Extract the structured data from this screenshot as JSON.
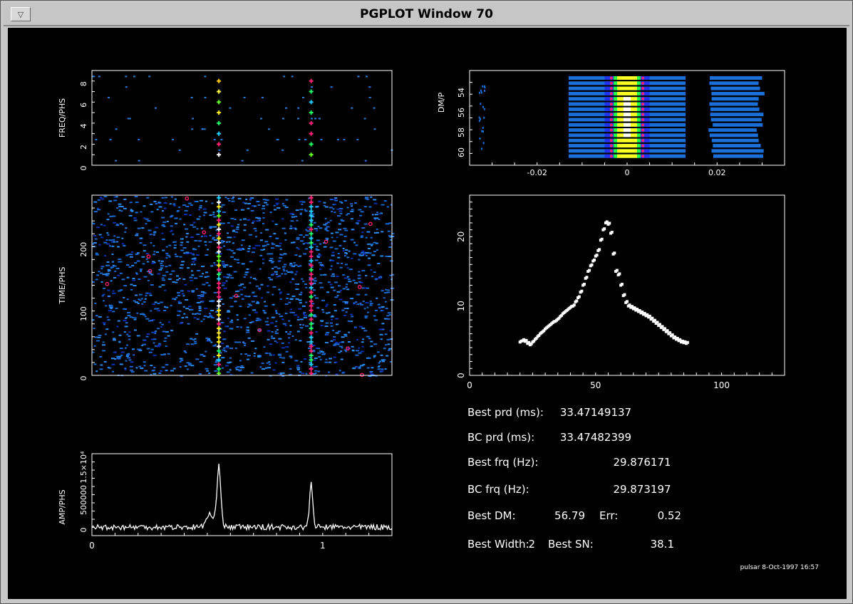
{
  "window": {
    "title": "PGPLOT Window 70",
    "menu_icon": "down-triangle-icon"
  },
  "plots": {
    "freq_phs": {
      "ylabel": "FREQ/PHS",
      "yticks": [
        "0",
        "2",
        "4",
        "6",
        "8"
      ]
    },
    "time_phs": {
      "ylabel": "TIME/PHS",
      "yticks": [
        "0",
        "100",
        "200"
      ]
    },
    "amp_phs": {
      "ylabel": "AMP/PHS",
      "yticks": [
        "0",
        "500000",
        "1.5×10⁴"
      ],
      "xticks": [
        "0",
        "1"
      ]
    },
    "dm_p": {
      "ylabel": "DM/P",
      "yticks": [
        "60",
        "58",
        "56",
        "54"
      ],
      "xticks": [
        "-0.02",
        "0",
        "0.02"
      ]
    },
    "snr_scatter": {
      "yticks": [
        "0",
        "10",
        "20"
      ],
      "xticks": [
        "0",
        "50",
        "100"
      ]
    }
  },
  "results": [
    {
      "label": "Best prd (ms):",
      "value": "33.47149137"
    },
    {
      "label": "BC   prd (ms):",
      "value": "33.47482399"
    },
    {
      "label": "Best frq (Hz):",
      "value": "29.876171"
    },
    {
      "label": "BC   frq (Hz):",
      "value": "29.873197"
    },
    {
      "label": "Best DM:",
      "value": "56.79",
      "label2": "Err:",
      "value2": "0.52"
    },
    {
      "label": "Best Width:",
      "value": "2",
      "label2": "Best SN:",
      "value2": "38.1"
    }
  ],
  "footer": "pulsar  8-Oct-1997 16:57",
  "chart_data": [
    {
      "type": "scatter",
      "ylabel": "FREQ/PHS",
      "xlim": [
        0,
        1.3
      ],
      "ylim": [
        0,
        9
      ],
      "peak_phases": [
        0.55,
        0.95
      ]
    },
    {
      "type": "heatmap",
      "ylabel": "TIME/PHS",
      "xlim": [
        0,
        1.3
      ],
      "ylim": [
        0,
        280
      ],
      "peak_phases": [
        0.55,
        0.95
      ]
    },
    {
      "type": "line",
      "ylabel": "AMP/PHS",
      "xlim": [
        0,
        1.3
      ],
      "peak_phases": [
        0.55,
        0.95
      ]
    },
    {
      "type": "heatmap",
      "ylabel": "DM/P",
      "xlim": [
        -0.035,
        0.035
      ],
      "ylim": [
        61,
        53
      ]
    },
    {
      "type": "scatter",
      "xlim": [
        0,
        125
      ],
      "ylim": [
        0,
        26
      ],
      "x": [
        20,
        21,
        22,
        23,
        24,
        25,
        26,
        27,
        28,
        29,
        30,
        31,
        32,
        33,
        34,
        35,
        36,
        37,
        38,
        39,
        40,
        41,
        42,
        43,
        44,
        45,
        46,
        47,
        48,
        49,
        50,
        51,
        52,
        53,
        54,
        55,
        56,
        57,
        58,
        59,
        60,
        61,
        62,
        63,
        64,
        65,
        66,
        67,
        68,
        69,
        70,
        71,
        72,
        73,
        74,
        75,
        76,
        77,
        78,
        79,
        80,
        81,
        82,
        83,
        84,
        85,
        86
      ],
      "y": [
        4.8,
        5.0,
        4.9,
        4.6,
        4.4,
        4.8,
        5.2,
        5.6,
        6.0,
        6.3,
        6.7,
        7.0,
        7.3,
        7.6,
        7.8,
        8.1,
        8.5,
        8.9,
        9.2,
        9.5,
        9.8,
        10.0,
        10.6,
        11.2,
        12.0,
        13.0,
        14.0,
        15.0,
        15.8,
        16.5,
        17.2,
        18.0,
        19.5,
        21.0,
        22.0,
        21.8,
        20.5,
        17.5,
        15.0,
        14.5,
        13.0,
        11.5,
        10.5,
        10.0,
        9.8,
        9.6,
        9.4,
        9.2,
        9.0,
        8.8,
        8.6,
        8.4,
        8.1,
        7.8,
        7.5,
        7.2,
        6.9,
        6.6,
        6.3,
        6.0,
        5.7,
        5.4,
        5.2,
        5.0,
        4.8,
        4.7,
        4.6
      ]
    }
  ]
}
